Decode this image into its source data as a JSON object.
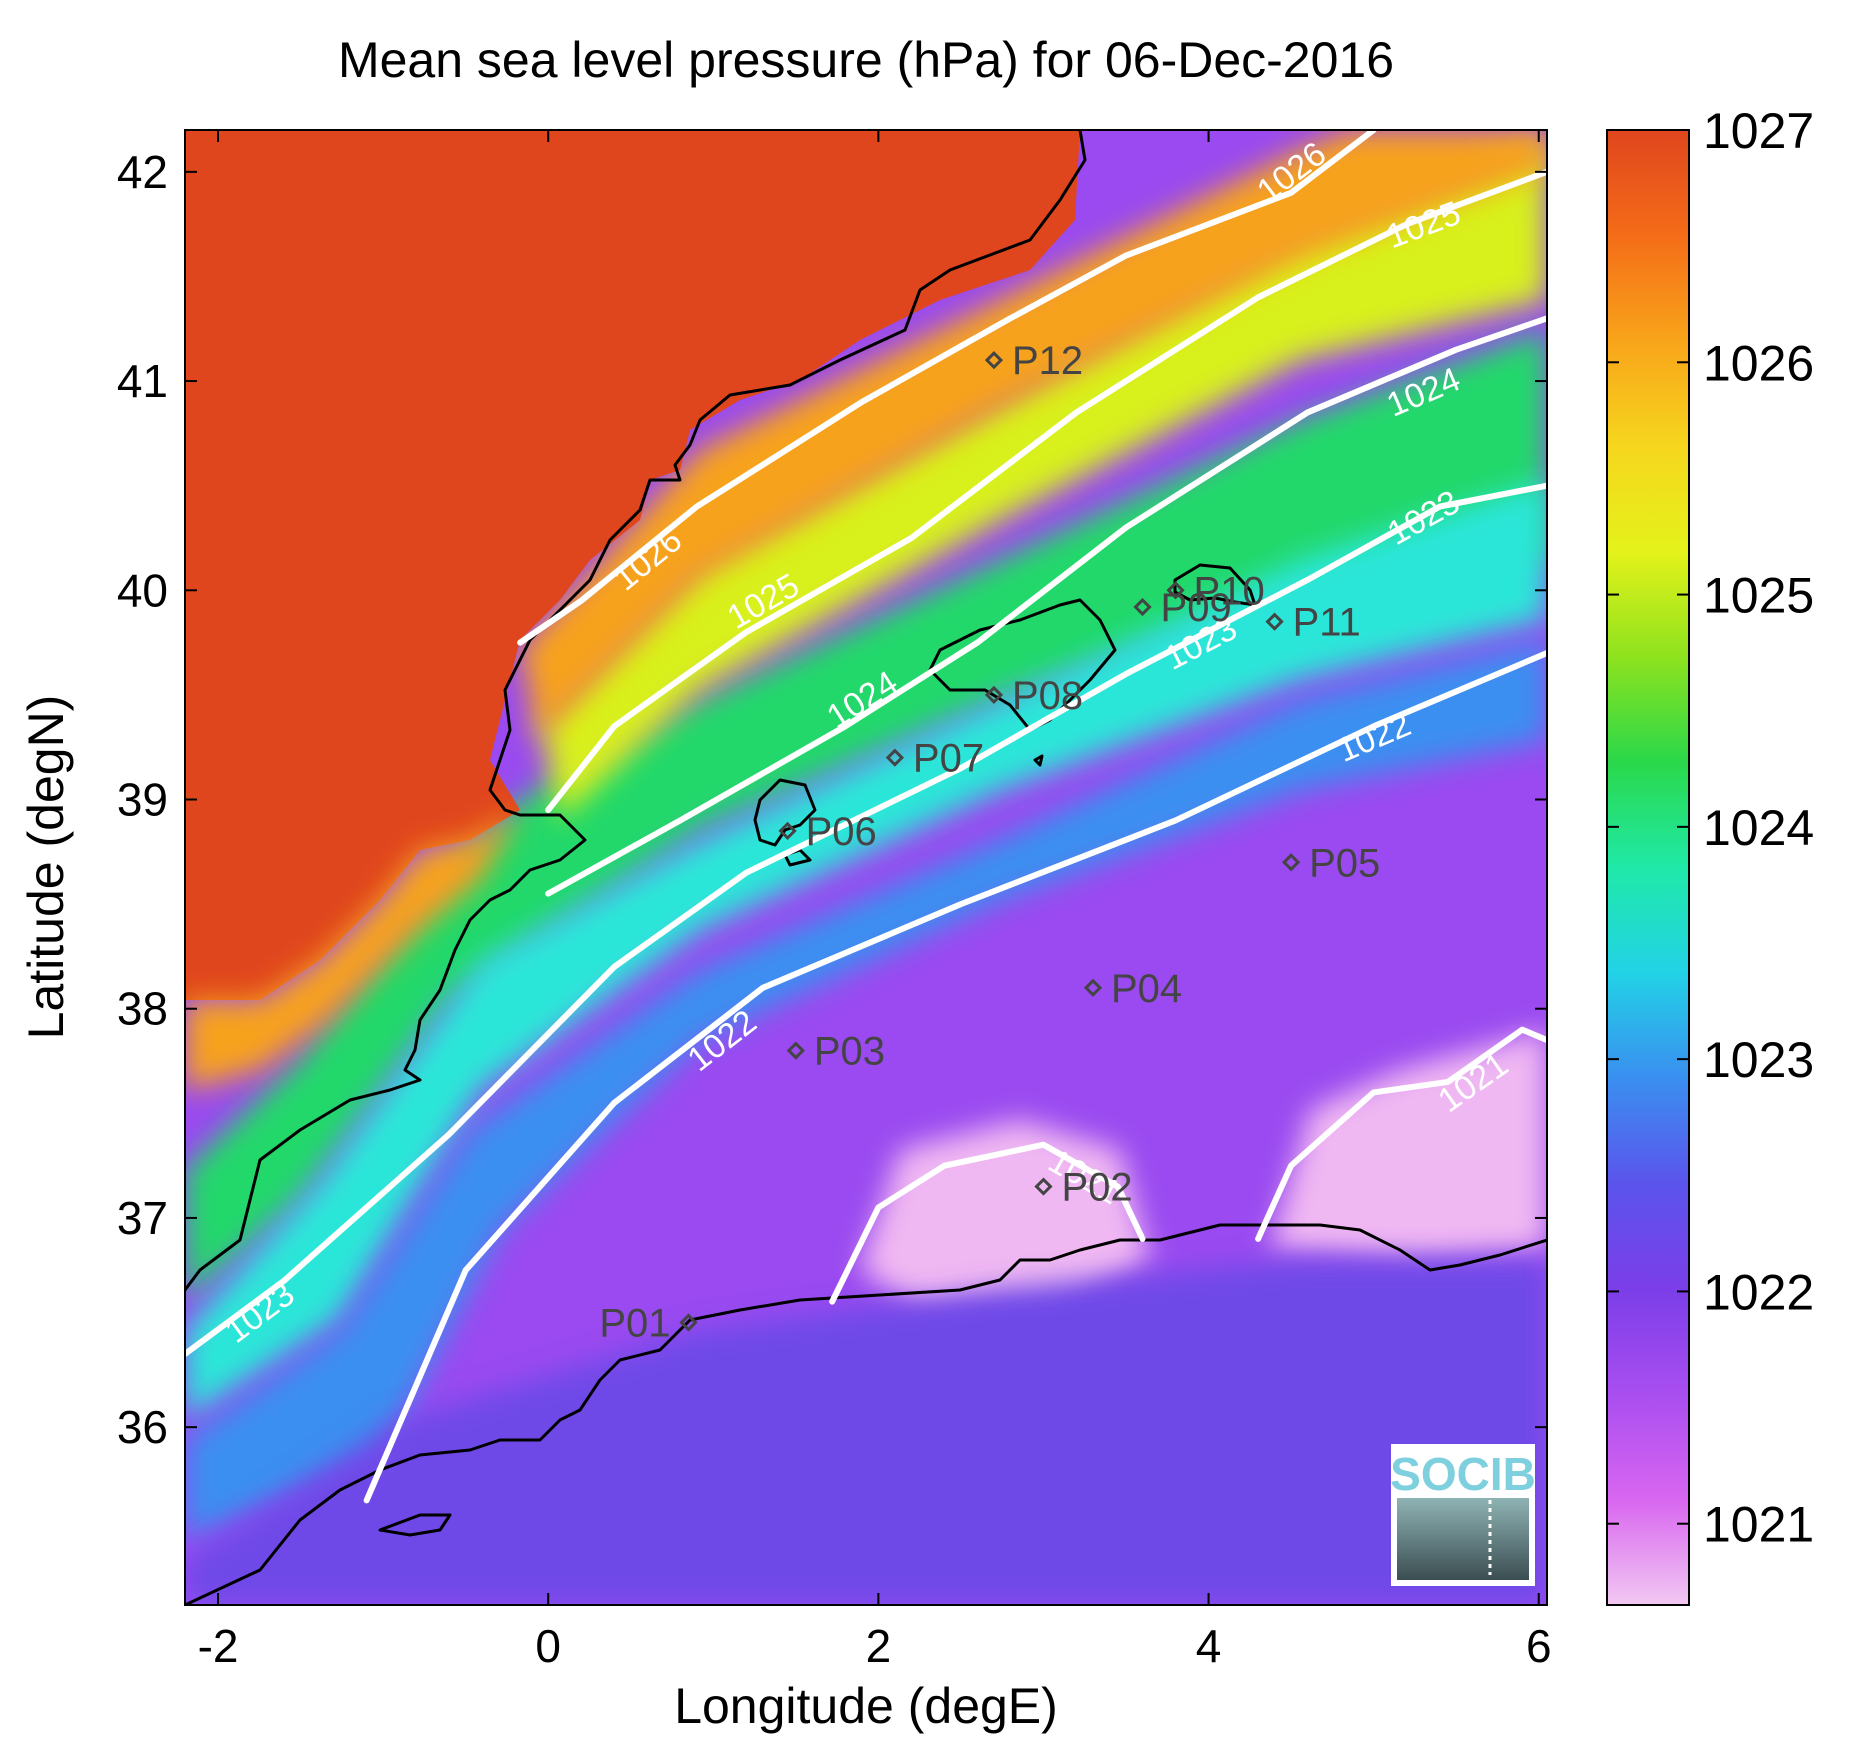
{
  "chart_data": {
    "type": "heatmap",
    "title": "Mean sea level pressure (hPa) for 06-Dec-2016",
    "xlabel": "Longitude (degE)",
    "ylabel": "Latitude (degN)",
    "xlim": [
      -2.2,
      6.05
    ],
    "ylim": [
      35.15,
      42.2
    ],
    "x_ticks": [
      {
        "value": -2,
        "label": "-2"
      },
      {
        "value": 0,
        "label": "0"
      },
      {
        "value": 2,
        "label": "2"
      },
      {
        "value": 4,
        "label": "4"
      },
      {
        "value": 6,
        "label": "6"
      }
    ],
    "y_ticks": [
      {
        "value": 36,
        "label": "36"
      },
      {
        "value": 37,
        "label": "37"
      },
      {
        "value": 38,
        "label": "38"
      },
      {
        "value": 39,
        "label": "39"
      },
      {
        "value": 40,
        "label": "40"
      },
      {
        "value": 41,
        "label": "41"
      },
      {
        "value": 42,
        "label": "42"
      }
    ],
    "colorbar": {
      "range": [
        1020.65,
        1027.0
      ],
      "ticks": [
        {
          "value": 1021,
          "label": "1021"
        },
        {
          "value": 1022,
          "label": "1022"
        },
        {
          "value": 1023,
          "label": "1023"
        },
        {
          "value": 1024,
          "label": "1024"
        },
        {
          "value": 1025,
          "label": "1025"
        },
        {
          "value": 1026,
          "label": "1026"
        },
        {
          "value": 1027,
          "label": "1027"
        }
      ],
      "colors": [
        "#f2c9f2",
        "#d866f0",
        "#a94ef0",
        "#7b3ee8",
        "#5b54ec",
        "#3a8ff0",
        "#22d2e6",
        "#20e9a8",
        "#2ad84a",
        "#8ee21e",
        "#e4f21a",
        "#f6d61e",
        "#f8a41a",
        "#f46c18",
        "#e0461e"
      ]
    },
    "contours": [
      {
        "value": 1026,
        "label": "1026",
        "points": [
          [
            -0.17,
            39.75
          ],
          [
            0.2,
            39.95
          ],
          [
            0.9,
            40.4
          ],
          [
            1.9,
            40.9
          ],
          [
            2.8,
            41.3
          ],
          [
            3.5,
            41.6
          ],
          [
            4.5,
            41.9
          ],
          [
            5.0,
            42.2
          ]
        ],
        "labels": [
          {
            "lon": 0.6,
            "lat": 40.15
          },
          {
            "lon": 4.5,
            "lat": 42.0
          }
        ]
      },
      {
        "value": 1025,
        "label": "1025",
        "points": [
          [
            0.0,
            38.95
          ],
          [
            0.4,
            39.35
          ],
          [
            1.2,
            39.8
          ],
          [
            2.2,
            40.25
          ],
          [
            3.2,
            40.85
          ],
          [
            4.3,
            41.4
          ],
          [
            5.2,
            41.75
          ],
          [
            6.05,
            42.0
          ]
        ],
        "labels": [
          {
            "lon": 1.3,
            "lat": 39.95
          },
          {
            "lon": 5.3,
            "lat": 41.75
          }
        ]
      },
      {
        "value": 1024,
        "label": "1024",
        "points": [
          [
            0.0,
            38.55
          ],
          [
            0.8,
            38.9
          ],
          [
            1.8,
            39.35
          ],
          [
            2.6,
            39.75
          ],
          [
            3.5,
            40.3
          ],
          [
            4.6,
            40.85
          ],
          [
            5.5,
            41.15
          ],
          [
            6.05,
            41.3
          ]
        ],
        "labels": [
          {
            "lon": 1.9,
            "lat": 39.48
          },
          {
            "lon": 5.3,
            "lat": 40.95
          }
        ]
      },
      {
        "value": 1023,
        "label": "1023",
        "points": [
          [
            -2.2,
            36.35
          ],
          [
            -1.6,
            36.7
          ],
          [
            -0.6,
            37.4
          ],
          [
            0.4,
            38.2
          ],
          [
            1.2,
            38.65
          ],
          [
            2.5,
            39.15
          ],
          [
            3.5,
            39.6
          ],
          [
            4.6,
            40.05
          ],
          [
            5.4,
            40.4
          ],
          [
            6.05,
            40.5
          ]
        ],
        "labels": [
          {
            "lon": -1.75,
            "lat": 36.55
          },
          {
            "lon": 3.95,
            "lat": 39.75
          },
          {
            "lon": 5.3,
            "lat": 40.35
          }
        ]
      },
      {
        "value": 1022,
        "label": "1022",
        "points": [
          [
            -1.1,
            35.65
          ],
          [
            -0.5,
            36.75
          ],
          [
            0.4,
            37.55
          ],
          [
            1.3,
            38.1
          ],
          [
            2.5,
            38.5
          ],
          [
            3.8,
            38.9
          ],
          [
            5.0,
            39.35
          ],
          [
            6.05,
            39.7
          ]
        ],
        "labels": [
          {
            "lon": 1.05,
            "lat": 37.85
          },
          {
            "lon": 5.0,
            "lat": 39.3
          }
        ]
      },
      {
        "value": 1021,
        "label": "1021",
        "points": [
          [
            1.72,
            36.6
          ],
          [
            2.0,
            37.05
          ],
          [
            2.4,
            37.25
          ],
          [
            3.0,
            37.35
          ],
          [
            3.45,
            37.15
          ],
          [
            3.6,
            36.9
          ]
        ],
        "labels": [
          {
            "lon": 3.25,
            "lat": 37.2
          }
        ]
      },
      {
        "value": 1021,
        "label": "1021",
        "points": [
          [
            4.3,
            36.9
          ],
          [
            4.5,
            37.25
          ],
          [
            5.0,
            37.6
          ],
          [
            5.45,
            37.65
          ],
          [
            5.9,
            37.9
          ],
          [
            6.05,
            37.85
          ]
        ],
        "labels": [
          {
            "lon": 5.6,
            "lat": 37.65
          }
        ]
      }
    ],
    "stations": [
      {
        "name": "P01",
        "lon": 0.85,
        "lat": 36.5
      },
      {
        "name": "P02",
        "lon": 3.0,
        "lat": 37.15
      },
      {
        "name": "P03",
        "lon": 1.5,
        "lat": 37.8
      },
      {
        "name": "P04",
        "lon": 3.3,
        "lat": 38.1
      },
      {
        "name": "P05",
        "lon": 4.5,
        "lat": 38.7
      },
      {
        "name": "P06",
        "lon": 1.45,
        "lat": 38.85
      },
      {
        "name": "P07",
        "lon": 2.1,
        "lat": 39.2
      },
      {
        "name": "P08",
        "lon": 2.7,
        "lat": 39.5
      },
      {
        "name": "P09",
        "lon": 3.6,
        "lat": 39.92
      },
      {
        "name": "P10",
        "lon": 3.8,
        "lat": 40.0
      },
      {
        "name": "P11",
        "lon": 4.4,
        "lat": 39.85
      },
      {
        "name": "P12",
        "lon": 2.7,
        "lat": 41.1
      }
    ],
    "logo": "SOCIB"
  }
}
